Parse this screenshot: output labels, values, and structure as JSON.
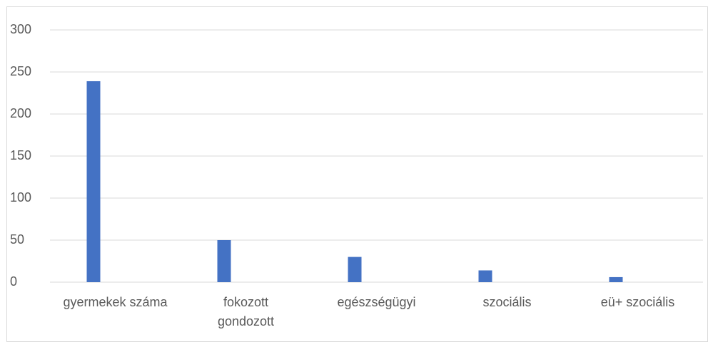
{
  "chart_data": {
    "type": "bar",
    "categories": [
      "gyermekek száma",
      "fokozott gondozott",
      "egészségügyi",
      "szociális",
      "eü+ szociális"
    ],
    "values": [
      239,
      50,
      30,
      14,
      6
    ],
    "color": "#4472c4",
    "ylim": [
      0,
      300
    ],
    "yticks": [
      0,
      50,
      100,
      150,
      200,
      250,
      300
    ],
    "grid": true
  }
}
